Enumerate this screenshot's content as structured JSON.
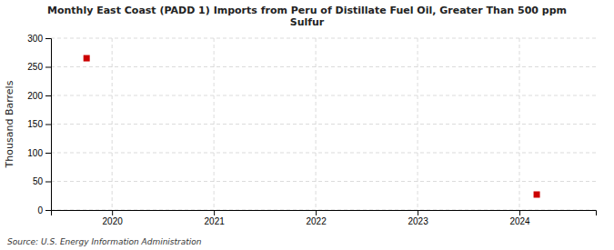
{
  "chart_data": {
    "type": "scatter",
    "title": "Monthly East Coast (PADD 1) Imports from Peru of Distillate Fuel Oil, Greater Than 500 ppm\nSulfur",
    "ylabel": "Thousand Barrels",
    "annotations": [
      "Source: U.S. Energy Information Administration"
    ],
    "x": [
      2019.75,
      2024.17
    ],
    "values": [
      265,
      27
    ],
    "color": "#cc0000",
    "marker": "square",
    "xlim": [
      2019.4,
      2024.75
    ],
    "ylim": [
      0,
      300
    ],
    "xticks": [
      2020,
      2021,
      2022,
      2023,
      2024
    ],
    "yticks": [
      0,
      50,
      100,
      150,
      200,
      250,
      300
    ],
    "grid": true
  }
}
